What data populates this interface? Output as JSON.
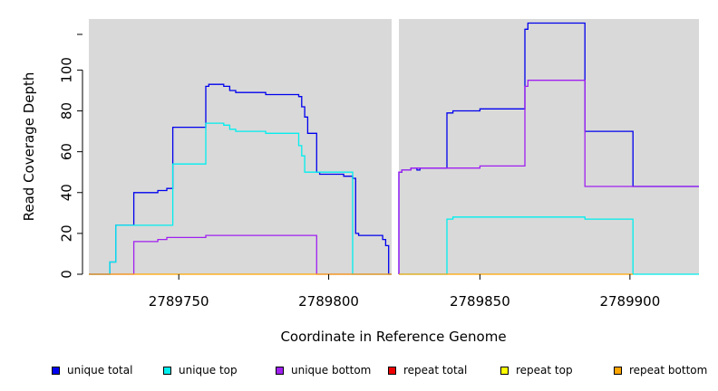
{
  "chart_data": {
    "type": "line",
    "xlabel": "Coordinate in Reference Genome",
    "ylabel": "Read Coverage Depth",
    "y_ticks": [
      0,
      20,
      40,
      60,
      80,
      100
    ],
    "x_ticks": [
      2789750,
      2789800,
      2789850,
      2789900
    ],
    "x_tick_labels": [
      "2789750",
      "2789800",
      "2789850",
      "2789900"
    ],
    "ylim": [
      0,
      125
    ],
    "panels": [
      {
        "xlim": [
          2789720,
          2789821
        ]
      },
      {
        "xlim": [
          2789823,
          2789923
        ]
      }
    ],
    "background_color": "#d9d9d9",
    "step_plot": true,
    "series": [
      {
        "name": "unique total",
        "color": "#0000ee",
        "points": [
          [
            2789720,
            0
          ],
          [
            2789727,
            0
          ],
          [
            2789727,
            6
          ],
          [
            2789729,
            6
          ],
          [
            2789729,
            24
          ],
          [
            2789735,
            24
          ],
          [
            2789735,
            40
          ],
          [
            2789743,
            40
          ],
          [
            2789743,
            41
          ],
          [
            2789746,
            41
          ],
          [
            2789746,
            42
          ],
          [
            2789748,
            42
          ],
          [
            2789748,
            72
          ],
          [
            2789759,
            72
          ],
          [
            2789759,
            92
          ],
          [
            2789760,
            92
          ],
          [
            2789760,
            93
          ],
          [
            2789765,
            93
          ],
          [
            2789765,
            92
          ],
          [
            2789767,
            92
          ],
          [
            2789767,
            90
          ],
          [
            2789769,
            90
          ],
          [
            2789769,
            89
          ],
          [
            2789779,
            89
          ],
          [
            2789779,
            88
          ],
          [
            2789790,
            88
          ],
          [
            2789790,
            87
          ],
          [
            2789791,
            87
          ],
          [
            2789791,
            82
          ],
          [
            2789792,
            82
          ],
          [
            2789792,
            77
          ],
          [
            2789793,
            77
          ],
          [
            2789793,
            69
          ],
          [
            2789796,
            69
          ],
          [
            2789796,
            50
          ],
          [
            2789797,
            50
          ],
          [
            2789797,
            49
          ],
          [
            2789805,
            49
          ],
          [
            2789805,
            48
          ],
          [
            2789808,
            48
          ],
          [
            2789808,
            47
          ],
          [
            2789809,
            47
          ],
          [
            2789809,
            20
          ],
          [
            2789810,
            20
          ],
          [
            2789810,
            19
          ],
          [
            2789818,
            19
          ],
          [
            2789818,
            17
          ],
          [
            2789819,
            17
          ],
          [
            2789819,
            14
          ],
          [
            2789820,
            14
          ],
          [
            2789820,
            0
          ],
          [
            2789821,
            0
          ],
          null,
          [
            2789823,
            0
          ],
          [
            2789823,
            50
          ],
          [
            2789824,
            50
          ],
          [
            2789824,
            51
          ],
          [
            2789827,
            51
          ],
          [
            2789827,
            52
          ],
          [
            2789829,
            52
          ],
          [
            2789829,
            51
          ],
          [
            2789830,
            51
          ],
          [
            2789830,
            52
          ],
          [
            2789839,
            52
          ],
          [
            2789839,
            79
          ],
          [
            2789841,
            79
          ],
          [
            2789841,
            80
          ],
          [
            2789850,
            80
          ],
          [
            2789850,
            81
          ],
          [
            2789865,
            81
          ],
          [
            2789865,
            120
          ],
          [
            2789866,
            120
          ],
          [
            2789866,
            123
          ],
          [
            2789885,
            123
          ],
          [
            2789885,
            70
          ],
          [
            2789901,
            70
          ],
          [
            2789901,
            43
          ],
          [
            2789923,
            43
          ]
        ]
      },
      {
        "name": "unique top",
        "color": "#00eeee",
        "points": [
          [
            2789720,
            0
          ],
          [
            2789727,
            0
          ],
          [
            2789727,
            6
          ],
          [
            2789729,
            6
          ],
          [
            2789729,
            24
          ],
          [
            2789748,
            24
          ],
          [
            2789748,
            54
          ],
          [
            2789759,
            54
          ],
          [
            2789759,
            74
          ],
          [
            2789765,
            74
          ],
          [
            2789765,
            73
          ],
          [
            2789767,
            73
          ],
          [
            2789767,
            71
          ],
          [
            2789769,
            71
          ],
          [
            2789769,
            70
          ],
          [
            2789779,
            70
          ],
          [
            2789779,
            69
          ],
          [
            2789790,
            69
          ],
          [
            2789790,
            63
          ],
          [
            2789791,
            63
          ],
          [
            2789791,
            58
          ],
          [
            2789792,
            58
          ],
          [
            2789792,
            50
          ],
          [
            2789808,
            50
          ],
          [
            2789808,
            0
          ],
          [
            2789821,
            0
          ],
          null,
          [
            2789823,
            0
          ],
          [
            2789839,
            0
          ],
          [
            2789839,
            27
          ],
          [
            2789841,
            27
          ],
          [
            2789841,
            28
          ],
          [
            2789885,
            28
          ],
          [
            2789885,
            27
          ],
          [
            2789901,
            27
          ],
          [
            2789901,
            0
          ],
          [
            2789923,
            0
          ]
        ]
      },
      {
        "name": "unique bottom",
        "color": "#a020f0",
        "points": [
          [
            2789720,
            0
          ],
          [
            2789735,
            0
          ],
          [
            2789735,
            16
          ],
          [
            2789743,
            16
          ],
          [
            2789743,
            17
          ],
          [
            2789746,
            17
          ],
          [
            2789746,
            18
          ],
          [
            2789759,
            18
          ],
          [
            2789759,
            19
          ],
          [
            2789796,
            19
          ],
          [
            2789796,
            0
          ],
          [
            2789821,
            0
          ],
          null,
          [
            2789823,
            0
          ],
          [
            2789823,
            50
          ],
          [
            2789824,
            50
          ],
          [
            2789824,
            51
          ],
          [
            2789827,
            51
          ],
          [
            2789827,
            52
          ],
          [
            2789850,
            52
          ],
          [
            2789850,
            53
          ],
          [
            2789865,
            53
          ],
          [
            2789865,
            92
          ],
          [
            2789866,
            92
          ],
          [
            2789866,
            95
          ],
          [
            2789885,
            95
          ],
          [
            2789885,
            43
          ],
          [
            2789923,
            43
          ]
        ]
      },
      {
        "name": "repeat total",
        "color": "#ee0000",
        "points": []
      },
      {
        "name": "repeat top",
        "color": "#ffff00",
        "points": []
      },
      {
        "name": "repeat bottom",
        "color": "#ffa500",
        "points": [
          [
            2789720,
            0
          ],
          [
            2789821,
            0
          ],
          null,
          [
            2789823,
            0
          ],
          [
            2789901,
            0
          ]
        ]
      }
    ],
    "legend_position": "bottom",
    "grid": false
  }
}
